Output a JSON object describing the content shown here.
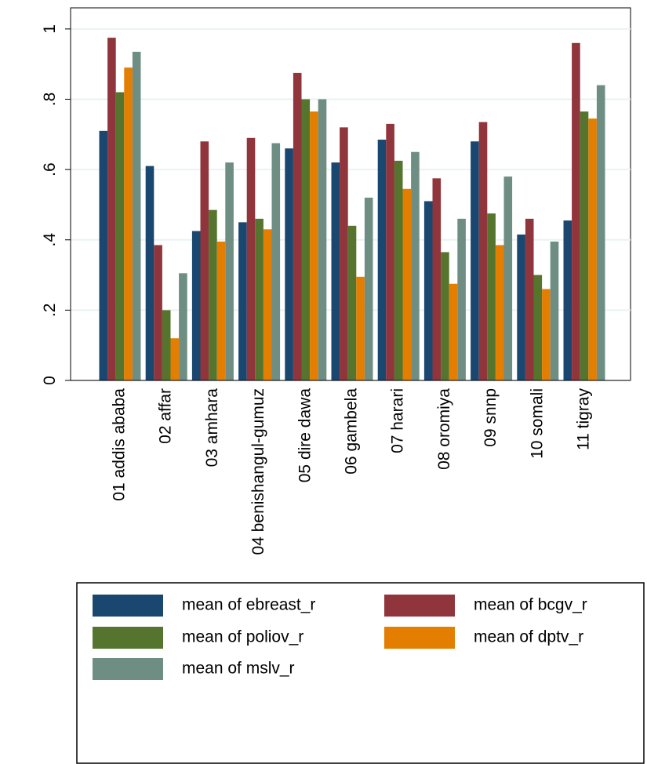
{
  "chart_data": {
    "type": "bar",
    "categories": [
      "01 addis ababa",
      "02 affar",
      "03 amhara",
      "04 benishangul-gumuz",
      "05 dire dawa",
      "06 gambela",
      "07 harari",
      "08 oromiya",
      "09 snnp",
      "10 somali",
      "11 tigray"
    ],
    "series": [
      {
        "name": "mean of ebreast_r",
        "color": "#1a476f",
        "values": [
          0.71,
          0.61,
          0.425,
          0.45,
          0.66,
          0.62,
          0.685,
          0.51,
          0.68,
          0.415,
          0.455
        ]
      },
      {
        "name": "mean of bcgv_r",
        "color": "#90353b",
        "values": [
          0.975,
          0.385,
          0.68,
          0.69,
          0.875,
          0.72,
          0.73,
          0.575,
          0.735,
          0.46,
          0.96
        ]
      },
      {
        "name": "mean of poliov_r",
        "color": "#55752f",
        "values": [
          0.82,
          0.2,
          0.485,
          0.46,
          0.8,
          0.44,
          0.625,
          0.365,
          0.475,
          0.3,
          0.765
        ]
      },
      {
        "name": "mean of dptv_r",
        "color": "#e37e00",
        "values": [
          0.89,
          0.12,
          0.395,
          0.43,
          0.765,
          0.295,
          0.545,
          0.275,
          0.385,
          0.26,
          0.745
        ]
      },
      {
        "name": "mean of mslv_r",
        "color": "#6e8e84",
        "values": [
          0.935,
          0.305,
          0.62,
          0.675,
          0.8,
          0.52,
          0.65,
          0.46,
          0.58,
          0.395,
          0.84
        ]
      }
    ],
    "ylim": [
      0,
      1.06
    ],
    "yticks": [
      0,
      {
        "value": 0.2,
        "label": ".2"
      },
      {
        "value": 0.4,
        "label": ".4"
      },
      {
        "value": 0.6,
        "label": ".6"
      },
      {
        "value": 0.8,
        "label": ".8"
      },
      1
    ],
    "grid": true
  }
}
